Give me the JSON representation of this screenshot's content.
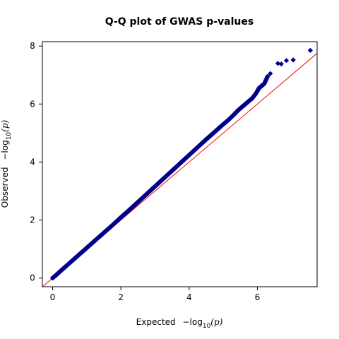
{
  "chart_data": {
    "type": "scatter",
    "title": "Q-Q plot of GWAS p-values",
    "xlabel": {
      "prefix": "Expected",
      "minus": "−log",
      "base": "10",
      "arg": "(p)"
    },
    "ylabel": {
      "prefix": "Observed",
      "minus": "−log",
      "base": "10",
      "arg": "(p)"
    },
    "xlim": [
      -0.3,
      7.75
    ],
    "ylim": [
      -0.3,
      8.15
    ],
    "xticks": [
      {
        "value": 0,
        "label": "0"
      },
      {
        "value": 2,
        "label": "2"
      },
      {
        "value": 4,
        "label": "4"
      },
      {
        "value": 6,
        "label": "6"
      }
    ],
    "yticks": [
      {
        "value": 0,
        "label": "0"
      },
      {
        "value": 2,
        "label": "2"
      },
      {
        "value": 4,
        "label": "4"
      },
      {
        "value": 6,
        "label": "6"
      },
      {
        "value": 8,
        "label": "8"
      }
    ],
    "grid": false,
    "reference_line": {
      "slope": 1,
      "intercept": 0,
      "color": "#ff0000"
    },
    "marker_color": "#00008b",
    "series": [
      {
        "points": [
          [
            0.0,
            0.0
          ],
          [
            0.1,
            0.1
          ],
          [
            0.25,
            0.26
          ],
          [
            0.5,
            0.52
          ],
          [
            0.75,
            0.78
          ],
          [
            1.0,
            1.04
          ],
          [
            1.25,
            1.3
          ],
          [
            1.5,
            1.56
          ],
          [
            1.75,
            1.82
          ],
          [
            2.0,
            2.09
          ],
          [
            2.25,
            2.35
          ],
          [
            2.5,
            2.62
          ],
          [
            2.75,
            2.89
          ],
          [
            3.0,
            3.16
          ],
          [
            3.25,
            3.43
          ],
          [
            3.5,
            3.7
          ],
          [
            3.75,
            3.97
          ],
          [
            4.0,
            4.24
          ],
          [
            4.25,
            4.51
          ],
          [
            4.5,
            4.78
          ],
          [
            4.75,
            5.04
          ],
          [
            5.0,
            5.3
          ],
          [
            5.15,
            5.45
          ],
          [
            5.3,
            5.62
          ],
          [
            5.45,
            5.8
          ],
          [
            5.6,
            5.95
          ],
          [
            5.75,
            6.1
          ],
          [
            5.85,
            6.2
          ],
          [
            5.95,
            6.35
          ],
          [
            6.05,
            6.55
          ],
          [
            6.12,
            6.62
          ],
          [
            6.2,
            6.7
          ],
          [
            6.3,
            6.95
          ],
          [
            6.38,
            7.05
          ],
          [
            6.6,
            7.4
          ],
          [
            6.7,
            7.38
          ],
          [
            6.85,
            7.5
          ],
          [
            7.05,
            7.52
          ],
          [
            7.55,
            7.85
          ]
        ]
      }
    ]
  }
}
